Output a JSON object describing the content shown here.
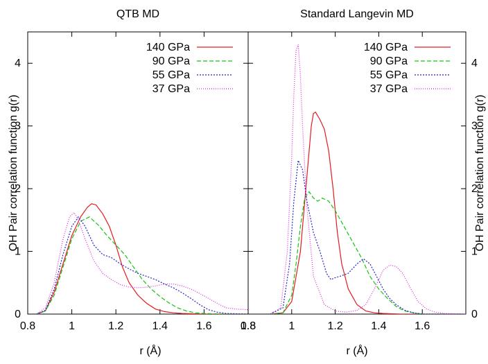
{
  "chart_data": [
    {
      "type": "line",
      "title": "QTB MD",
      "xlabel": "r (Å)",
      "ylabel": "OH Pair correlation function g(r)",
      "xlim": [
        0.8,
        1.8
      ],
      "ylim": [
        0,
        4.5
      ],
      "xticks": [
        "0.8",
        "1",
        "1.2",
        "1.4",
        "1.6",
        "1.8"
      ],
      "yticks": [
        "0",
        "1",
        "2",
        "3",
        "4"
      ],
      "legend_position": "top-right",
      "series": [
        {
          "name": "140 GPa",
          "color": "#e41a1c",
          "dash": "solid",
          "x": [
            0.84,
            0.88,
            0.92,
            0.96,
            1.0,
            1.04,
            1.07,
            1.09,
            1.11,
            1.14,
            1.17,
            1.2,
            1.23,
            1.26,
            1.3,
            1.34,
            1.38,
            1.42,
            1.46,
            1.5,
            1.6,
            1.8
          ],
          "y": [
            0.0,
            0.05,
            0.35,
            0.8,
            1.25,
            1.55,
            1.7,
            1.76,
            1.74,
            1.6,
            1.4,
            1.1,
            0.75,
            0.5,
            0.3,
            0.17,
            0.08,
            0.04,
            0.02,
            0.01,
            0.0,
            0.0
          ]
        },
        {
          "name": "90 GPa",
          "color": "#11c411",
          "dash": "6,3",
          "x": [
            0.84,
            0.88,
            0.92,
            0.96,
            1.0,
            1.04,
            1.08,
            1.12,
            1.16,
            1.2,
            1.24,
            1.28,
            1.32,
            1.36,
            1.4,
            1.44,
            1.48,
            1.52,
            1.56,
            1.6,
            1.7,
            1.8
          ],
          "y": [
            0.0,
            0.05,
            0.3,
            0.75,
            1.2,
            1.48,
            1.55,
            1.42,
            1.25,
            1.1,
            0.95,
            0.75,
            0.55,
            0.4,
            0.28,
            0.18,
            0.1,
            0.05,
            0.02,
            0.01,
            0.0,
            0.0
          ]
        },
        {
          "name": "55 GPa",
          "color": "#2222cc",
          "dash": "2,2",
          "x": [
            0.84,
            0.88,
            0.92,
            0.96,
            1.0,
            1.03,
            1.06,
            1.1,
            1.14,
            1.18,
            1.22,
            1.26,
            1.3,
            1.34,
            1.38,
            1.42,
            1.46,
            1.5,
            1.54,
            1.58,
            1.62,
            1.66,
            1.7,
            1.8
          ],
          "y": [
            0.0,
            0.06,
            0.4,
            0.95,
            1.4,
            1.55,
            1.4,
            1.1,
            0.95,
            0.9,
            0.8,
            0.72,
            0.65,
            0.6,
            0.55,
            0.48,
            0.42,
            0.34,
            0.25,
            0.15,
            0.07,
            0.03,
            0.01,
            0.0
          ]
        },
        {
          "name": "37 GPa",
          "color": "#dd22dd",
          "dash": "1,2",
          "x": [
            0.84,
            0.88,
            0.92,
            0.96,
            0.99,
            1.01,
            1.03,
            1.06,
            1.1,
            1.14,
            1.18,
            1.22,
            1.26,
            1.3,
            1.34,
            1.38,
            1.42,
            1.46,
            1.5,
            1.54,
            1.58,
            1.62,
            1.66,
            1.7,
            1.75,
            1.8
          ],
          "y": [
            0.0,
            0.1,
            0.5,
            1.2,
            1.55,
            1.62,
            1.5,
            1.2,
            0.85,
            0.65,
            0.55,
            0.47,
            0.43,
            0.42,
            0.43,
            0.45,
            0.48,
            0.48,
            0.45,
            0.4,
            0.33,
            0.25,
            0.17,
            0.1,
            0.08,
            0.07
          ]
        }
      ]
    },
    {
      "type": "line",
      "title": "Standard Langevin MD",
      "xlabel": "r (Å)",
      "ylabel": "OH Pair correlation function g(r)",
      "xlim": [
        0.8,
        1.8
      ],
      "ylim": [
        0,
        4.5
      ],
      "xticks": [
        "0.8",
        "1",
        "1.2",
        "1.4",
        "1.6"
      ],
      "yticks": [
        "0",
        "1",
        "2",
        "3",
        "4"
      ],
      "legend_position": "top-right",
      "series": [
        {
          "name": "140 GPa",
          "color": "#e41a1c",
          "dash": "solid",
          "x": [
            0.9,
            0.96,
            1.0,
            1.04,
            1.07,
            1.09,
            1.1,
            1.11,
            1.13,
            1.15,
            1.17,
            1.19,
            1.21,
            1.23,
            1.26,
            1.3,
            1.34,
            1.38,
            1.42,
            1.5,
            1.8
          ],
          "y": [
            0.0,
            0.02,
            0.2,
            1.0,
            2.2,
            3.0,
            3.2,
            3.22,
            3.1,
            2.95,
            2.6,
            2.0,
            1.3,
            0.8,
            0.4,
            0.15,
            0.05,
            0.02,
            0.01,
            0.0,
            0.0
          ]
        },
        {
          "name": "90 GPa",
          "color": "#11c411",
          "dash": "6,3",
          "x": [
            0.9,
            0.96,
            1.0,
            1.02,
            1.04,
            1.06,
            1.08,
            1.1,
            1.12,
            1.14,
            1.17,
            1.2,
            1.24,
            1.28,
            1.32,
            1.36,
            1.4,
            1.44,
            1.48,
            1.52,
            1.56,
            1.6,
            1.8
          ],
          "y": [
            0.0,
            0.02,
            0.3,
            0.8,
            1.4,
            1.85,
            1.95,
            1.85,
            1.8,
            1.85,
            1.8,
            1.65,
            1.4,
            1.15,
            0.9,
            0.6,
            0.4,
            0.25,
            0.12,
            0.05,
            0.02,
            0.0,
            0.0
          ]
        },
        {
          "name": "55 GPa",
          "color": "#2222cc",
          "dash": "2,2",
          "x": [
            0.9,
            0.96,
            0.99,
            1.01,
            1.03,
            1.05,
            1.07,
            1.1,
            1.13,
            1.16,
            1.18,
            1.2,
            1.22,
            1.26,
            1.3,
            1.33,
            1.36,
            1.39,
            1.42,
            1.45,
            1.48,
            1.52,
            1.56,
            1.6,
            1.8
          ],
          "y": [
            0.0,
            0.1,
            0.8,
            1.8,
            2.45,
            2.3,
            1.8,
            1.3,
            1.0,
            0.65,
            0.55,
            0.58,
            0.6,
            0.65,
            0.8,
            0.88,
            0.8,
            0.6,
            0.4,
            0.25,
            0.15,
            0.06,
            0.02,
            0.0,
            0.0
          ]
        },
        {
          "name": "37 GPa",
          "color": "#dd22dd",
          "dash": "1,2",
          "x": [
            0.9,
            0.95,
            0.98,
            1.0,
            1.01,
            1.02,
            1.03,
            1.04,
            1.05,
            1.07,
            1.1,
            1.15,
            1.2,
            1.25,
            1.3,
            1.34,
            1.38,
            1.42,
            1.45,
            1.48,
            1.51,
            1.54,
            1.58,
            1.62,
            1.66,
            1.7,
            1.8
          ],
          "y": [
            0.0,
            0.1,
            1.0,
            2.5,
            3.5,
            4.2,
            4.3,
            3.8,
            3.0,
            1.7,
            0.6,
            0.15,
            0.05,
            0.03,
            0.06,
            0.15,
            0.4,
            0.7,
            0.78,
            0.76,
            0.65,
            0.45,
            0.2,
            0.08,
            0.03,
            0.01,
            0.0
          ]
        }
      ]
    }
  ]
}
